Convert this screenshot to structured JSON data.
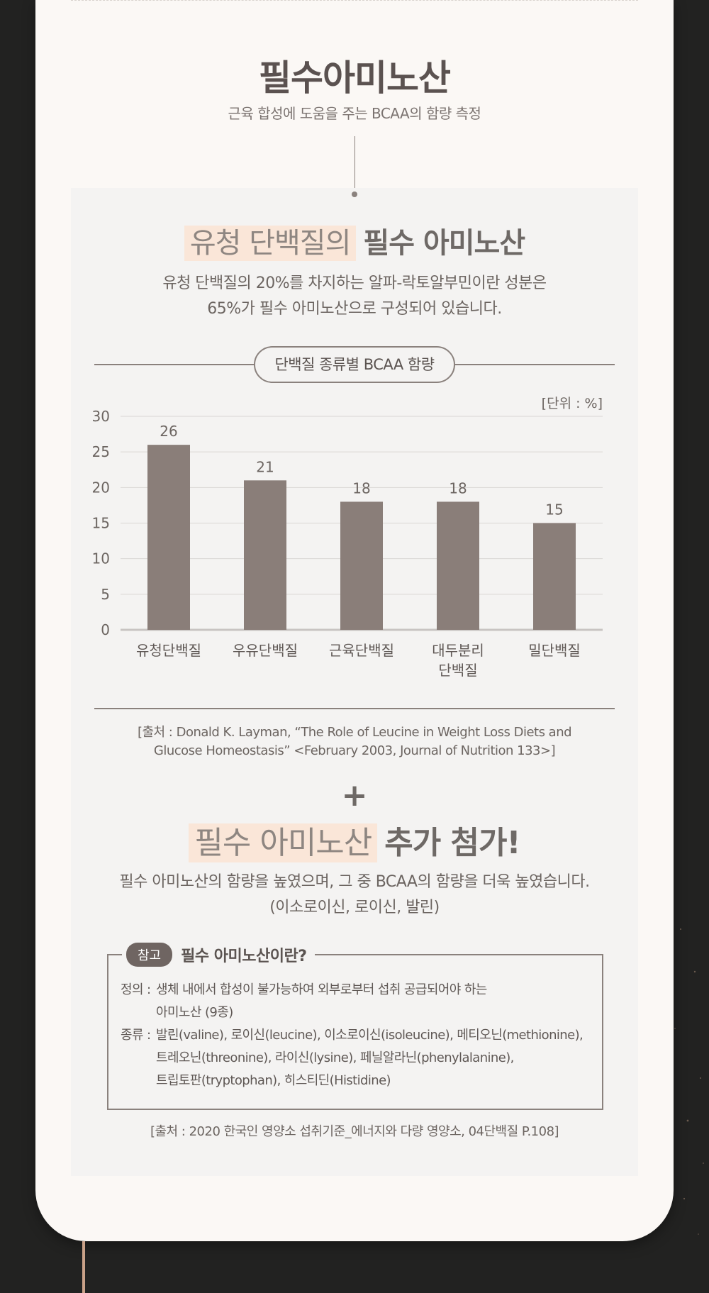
{
  "header": {
    "title": "필수아미노산",
    "subtitle": "근육 합성에 도움을 주는 BCAA의 함량 측정"
  },
  "section1": {
    "title_highlight": "유청 단백질의",
    "title_strong": "필수 아미노산",
    "desc_line1": "유청 단백질의 20%를 차지하는 알파-락토알부민이란 성분은",
    "desc_line2": "65%가 필수 아미노산으로 구성되어 있습니다."
  },
  "chart_section": {
    "pill_label": "단백질 종류별 BCAA 함량",
    "unit_label": "[단위 : %]"
  },
  "chart_data": {
    "type": "bar",
    "title": "단백질 종류별 BCAA 함량",
    "categories": [
      "유청단백질",
      "우유단백질",
      "근육단백질",
      "대두분리 단백질",
      "밀단백질"
    ],
    "category_lines": [
      [
        "유청단백질"
      ],
      [
        "우유단백질"
      ],
      [
        "근육단백질"
      ],
      [
        "대두분리",
        "단백질"
      ],
      [
        "밀단백질"
      ]
    ],
    "values": [
      26,
      21,
      18,
      18,
      15
    ],
    "data_labels": [
      "26",
      "21",
      "18",
      "18",
      "15"
    ],
    "yticks": [
      "0",
      "5",
      "10",
      "15",
      "20",
      "25",
      "30"
    ],
    "ylim": [
      0,
      30
    ],
    "unit": "%",
    "grid": true,
    "bar_color": "#8a7e79"
  },
  "source1": {
    "line1": "[출처 : Donald K. Layman, “The Role of Leucine in Weight Loss Diets and",
    "line2": "Glucose Homeostasis” <February 2003, Journal of Nutrition 133>]"
  },
  "section2": {
    "plus": "+",
    "title_highlight": "필수 아미노산",
    "title_strong": "추가 첨가!",
    "desc_line1": "필수 아미노산의 함량을 높였으며, 그 중 BCAA의 함량을 더욱 높였습니다.",
    "desc_line2": "(이소로이신, 로이신, 발린)"
  },
  "reference": {
    "badge": "참고",
    "title": "필수 아미노산이란?",
    "def_label": "정의 :",
    "def_line1": "생체 내에서 합성이 불가능하여 외부로부터 섭취 공급되어야 하는",
    "def_line2": "아미노산 (9종)",
    "kind_label": "종류 :",
    "kind_line1": "발린(valine), 로이신(leucine), 이소로이신(isoleucine), 메티오닌(methionine),",
    "kind_line2": "트레오닌(threonine), 라이신(lysine), 페닐알라닌(phenylalanine),",
    "kind_line3": "트립토판(tryptophan), 히스티딘(Histidine)"
  },
  "source2": {
    "text": "[출처 : 2020 한국인 영양소 섭취기준_에너지와 다량 영양소, 04단백질 P.108]"
  },
  "colors": {
    "background": "#222221",
    "card": "#fbf8f5",
    "panel": "#f4f3f2",
    "highlight": "#fae6d8",
    "bar": "#8a7e79"
  }
}
